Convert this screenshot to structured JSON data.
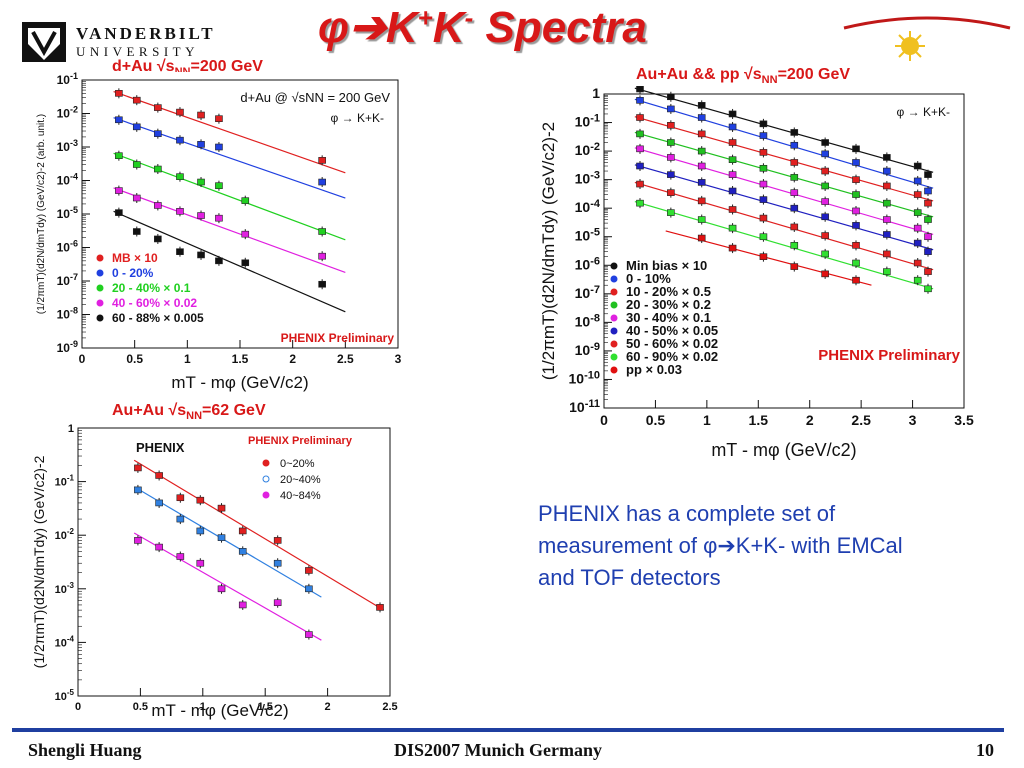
{
  "header": {
    "university_line1": "VANDERBILT",
    "university_line2": "UNIVERSITY",
    "title_main": "φ➔K",
    "title_sup1": "+",
    "title_mid": "K",
    "title_sup2": "-",
    "title_end": " Spectra",
    "experiment_logo": "PHENIX"
  },
  "captions": {
    "dau": "d+Au √s",
    "dau_sub": "NN",
    "dau_end": "=200 GeV",
    "auau200": "Au+Au && pp √s",
    "auau200_sub": "NN",
    "auau200_end": "=200 GeV",
    "auau62": "Au+Au √s",
    "auau62_sub": "NN",
    "auau62_end": "=62 GeV"
  },
  "description": {
    "line": "PHENIX has a complete set of measurement of φ➔K+K- with EMCal and TOF detectors"
  },
  "footer": {
    "author": "Shengli Huang",
    "conference": "DIS2007 Munich Germany",
    "page": "10"
  },
  "colors": {
    "accent_red": "#d81818",
    "text_blue": "#1f3fb0",
    "rule_blue": "#1f3fa0"
  },
  "chart_data": [
    {
      "type": "scatter",
      "log_y": true,
      "xlim": [
        0,
        3
      ],
      "ylim_exp": [
        -9,
        -1
      ],
      "x_ticks": [
        "0",
        "0.5",
        "1",
        "1.5",
        "2",
        "2.5",
        "3"
      ],
      "y_ticks": [
        "10-9",
        "10-8",
        "10-7",
        "10-6",
        "10-5",
        "10-4",
        "10-3",
        "10-2",
        "10-1"
      ],
      "xlabel": "mT - mφ (GeV/c2)",
      "ylabel": "(1/2πmT)(d2N/dmTdy) (GeV/c2)-2 (arb. unit.)",
      "annotation": "d+Au @ √sNN = 200 GeV",
      "annotation2": "φ → K+K-",
      "preliminary": "PHENIX Preliminary",
      "legend_position": "bottom-left",
      "series": [
        {
          "name": "MB × 10",
          "color": "#e02020",
          "x": [
            0.35,
            0.52,
            0.72,
            0.93,
            1.13,
            1.3,
            2.28
          ],
          "y": [
            0.04,
            0.025,
            0.015,
            0.011,
            0.009,
            0.007,
            0.0004
          ],
          "fit": [
            0.3,
            0.045,
            2.5,
            0.00017
          ]
        },
        {
          "name": "0 - 20%",
          "color": "#2040e0",
          "x": [
            0.35,
            0.52,
            0.72,
            0.93,
            1.13,
            1.3,
            2.28
          ],
          "y": [
            0.0065,
            0.004,
            0.0025,
            0.0016,
            0.0012,
            0.001,
            9e-05
          ],
          "fit": [
            0.3,
            0.0075,
            2.5,
            3e-05
          ]
        },
        {
          "name": "20 - 40% × 0.1",
          "color": "#20d020",
          "x": [
            0.35,
            0.52,
            0.72,
            0.93,
            1.13,
            1.3,
            1.55,
            2.28
          ],
          "y": [
            0.00055,
            0.0003,
            0.00022,
            0.00013,
            9e-05,
            7e-05,
            2.5e-05,
            3e-06
          ],
          "fit": [
            0.3,
            0.00065,
            2.5,
            1.7e-06
          ]
        },
        {
          "name": "40 - 60% × 0.02",
          "color": "#e020e0",
          "x": [
            0.35,
            0.52,
            0.72,
            0.93,
            1.13,
            1.3,
            1.55,
            2.28
          ],
          "y": [
            5e-05,
            3e-05,
            1.8e-05,
            1.2e-05,
            9e-06,
            7.5e-06,
            2.5e-06,
            5.5e-07
          ],
          "fit": [
            0.3,
            6e-05,
            2.5,
            1.8e-07
          ]
        },
        {
          "name": "60 - 88% × 0.005",
          "color": "#111111",
          "x": [
            0.35,
            0.52,
            0.72,
            0.93,
            1.13,
            1.3,
            1.55,
            2.28
          ],
          "y": [
            1.1e-05,
            3e-06,
            1.8e-06,
            7.5e-07,
            6e-07,
            4e-07,
            3.5e-07,
            8e-08
          ],
          "fit": [
            0.3,
            1.2e-05,
            2.5,
            1.2e-08
          ]
        }
      ]
    },
    {
      "type": "scatter",
      "log_y": true,
      "xlim": [
        0,
        3.5
      ],
      "ylim_exp": [
        -11,
        0
      ],
      "x_ticks": [
        "0",
        "0.5",
        "1",
        "1.5",
        "2",
        "2.5",
        "3",
        "3.5"
      ],
      "y_ticks": [
        "10-11",
        "10-10",
        "10-9",
        "10-8",
        "10-7",
        "10-6",
        "10-5",
        "10-4",
        "10-3",
        "10-2",
        "10-1",
        "1"
      ],
      "xlabel": "mT - mφ (GeV/c2)",
      "ylabel": "(1/2πmT)(d2N/dmTdy) (GeV/c2)-2",
      "annotation2": "φ → K+K-",
      "preliminary": "PHENIX Preliminary",
      "legend_position": "bottom-left",
      "series": [
        {
          "name": "Min bias × 10",
          "color": "#111111",
          "x": [
            0.35,
            0.65,
            0.95,
            1.25,
            1.55,
            1.85,
            2.15,
            2.45,
            2.75,
            3.05,
            3.15
          ],
          "y": [
            1.5,
            0.8,
            0.4,
            0.2,
            0.09,
            0.045,
            0.02,
            0.012,
            0.006,
            0.003,
            0.0015
          ],
          "fit": [
            0.3,
            1.6,
            3.2,
            0.0018
          ]
        },
        {
          "name": "0 - 10%",
          "color": "#2040e0",
          "x": [
            0.35,
            0.65,
            0.95,
            1.25,
            1.55,
            1.85,
            2.15,
            2.45,
            2.75,
            3.05,
            3.15
          ],
          "y": [
            0.6,
            0.3,
            0.15,
            0.07,
            0.035,
            0.016,
            0.008,
            0.004,
            0.002,
            0.0009,
            0.0004
          ],
          "fit": [
            0.3,
            0.65,
            3.2,
            0.0005
          ]
        },
        {
          "name": "10 - 20% × 0.5",
          "color": "#e02020",
          "x": [
            0.35,
            0.65,
            0.95,
            1.25,
            1.55,
            1.85,
            2.15,
            2.45,
            2.75,
            3.05,
            3.15
          ],
          "y": [
            0.15,
            0.08,
            0.04,
            0.02,
            0.009,
            0.004,
            0.002,
            0.001,
            0.0006,
            0.0003,
            0.00015
          ],
          "fit": [
            0.3,
            0.16,
            3.2,
            0.00018
          ]
        },
        {
          "name": "20 - 30% × 0.2",
          "color": "#20c020",
          "x": [
            0.35,
            0.65,
            0.95,
            1.25,
            1.55,
            1.85,
            2.15,
            2.45,
            2.75,
            3.05,
            3.15
          ],
          "y": [
            0.04,
            0.02,
            0.01,
            0.005,
            0.0025,
            0.0012,
            0.0006,
            0.0003,
            0.00015,
            7e-05,
            4e-05
          ],
          "fit": [
            0.3,
            0.045,
            3.2,
            5e-05
          ]
        },
        {
          "name": "30 - 40% × 0.1",
          "color": "#e020e0",
          "x": [
            0.35,
            0.65,
            0.95,
            1.25,
            1.55,
            1.85,
            2.15,
            2.45,
            2.75,
            3.05,
            3.15
          ],
          "y": [
            0.012,
            0.006,
            0.003,
            0.0015,
            0.0007,
            0.00035,
            0.00017,
            8e-05,
            4e-05,
            2e-05,
            1e-05
          ],
          "fit": [
            0.3,
            0.013,
            3.2,
            1.2e-05
          ]
        },
        {
          "name": "40 - 50% × 0.05",
          "color": "#2020c0",
          "x": [
            0.35,
            0.65,
            0.95,
            1.25,
            1.55,
            1.85,
            2.15,
            2.45,
            2.75,
            3.05,
            3.15
          ],
          "y": [
            0.003,
            0.0015,
            0.0008,
            0.0004,
            0.0002,
            0.0001,
            5e-05,
            2.5e-05,
            1.2e-05,
            6e-06,
            3e-06
          ],
          "fit": [
            0.3,
            0.0033,
            3.2,
            3.5e-06
          ]
        },
        {
          "name": "50 - 60% × 0.02",
          "color": "#e02020",
          "x": [
            0.35,
            0.65,
            0.95,
            1.25,
            1.55,
            1.85,
            2.15,
            2.45,
            2.75,
            3.05,
            3.15
          ],
          "y": [
            0.0007,
            0.00035,
            0.00018,
            9e-05,
            4.5e-05,
            2.2e-05,
            1.1e-05,
            5e-06,
            2.5e-06,
            1.2e-06,
            6e-07
          ],
          "fit": [
            0.3,
            0.0008,
            3.2,
            7e-07
          ]
        },
        {
          "name": "60 - 90% × 0.02",
          "color": "#30e030",
          "x": [
            0.35,
            0.65,
            0.95,
            1.25,
            1.55,
            1.85,
            2.15,
            2.45,
            2.75,
            3.05,
            3.15
          ],
          "y": [
            0.00015,
            7e-05,
            4e-05,
            2e-05,
            1e-05,
            5e-06,
            2.5e-06,
            1.2e-06,
            6e-07,
            3e-07,
            1.5e-07
          ],
          "fit": [
            0.3,
            0.00017,
            3.2,
            1.5e-07
          ]
        },
        {
          "name": "pp × 0.03",
          "color": "#e01010",
          "x": [
            0.95,
            1.25,
            1.55,
            1.85,
            2.15,
            2.45
          ],
          "y": [
            9e-06,
            4e-06,
            2e-06,
            9e-07,
            5e-07,
            3e-07
          ],
          "fit": [
            0.6,
            1.6e-05,
            2.6,
            2e-07
          ]
        }
      ]
    },
    {
      "type": "scatter",
      "log_y": true,
      "xlim": [
        0,
        2.5
      ],
      "ylim_exp": [
        -5,
        0
      ],
      "x_ticks": [
        "0",
        "0.5",
        "1",
        "1.5",
        "2",
        "2.5"
      ],
      "y_ticks": [
        "10-5",
        "10-4",
        "10-3",
        "10-2",
        "10-1",
        "1"
      ],
      "xlabel": "mT - mφ (GeV/c2)",
      "ylabel": "(1/2πmT)(d2N/dmTdy) (GeV/c2)-2",
      "preliminary": "PHENIX Preliminary",
      "logo": "PHENIX",
      "legend_position": "top-right",
      "series": [
        {
          "name": "0~20%",
          "color": "#e02020",
          "x": [
            0.48,
            0.65,
            0.82,
            0.98,
            1.15,
            1.32,
            1.6,
            1.85,
            2.42
          ],
          "y": [
            0.18,
            0.13,
            0.05,
            0.045,
            0.032,
            0.012,
            0.008,
            0.0022,
            0.00045
          ],
          "fit": [
            0.45,
            0.25,
            2.45,
            0.0004
          ]
        },
        {
          "name": "20~40%",
          "color": "#3080e0",
          "x": [
            0.48,
            0.65,
            0.82,
            0.98,
            1.15,
            1.32,
            1.6,
            1.85
          ],
          "y": [
            0.07,
            0.04,
            0.02,
            0.012,
            0.009,
            0.005,
            0.003,
            0.001
          ],
          "fit": [
            0.45,
            0.08,
            1.95,
            0.0007
          ]
        },
        {
          "name": "40~84%",
          "color": "#e020e0",
          "x": [
            0.48,
            0.65,
            0.82,
            0.98,
            1.15,
            1.32,
            1.6,
            1.85
          ],
          "y": [
            0.008,
            0.006,
            0.004,
            0.003,
            0.001,
            0.0005,
            0.00055,
            0.00014
          ],
          "fit": [
            0.45,
            0.011,
            1.95,
            0.00011
          ]
        }
      ]
    }
  ]
}
